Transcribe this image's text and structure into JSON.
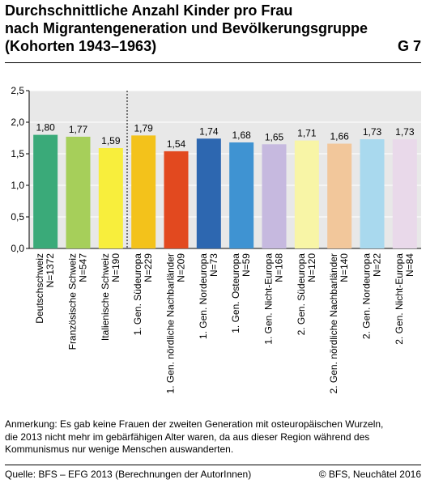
{
  "header": {
    "title_lines": [
      "Durchschnittliche Anzahl Kinder pro Frau",
      "nach Migrantengeneration und Bevölkerungsgruppe",
      "(Kohorten 1943–1963)"
    ],
    "figure_id": "G 7"
  },
  "chart_data": {
    "type": "bar",
    "title": "Durchschnittliche Anzahl Kinder pro Frau nach Migrantengeneration und Bevölkerungsgruppe (Kohorten 1943–1963)",
    "xlabel": "",
    "ylabel": "",
    "ylim": [
      0,
      2.5
    ],
    "yticks": [
      "0,0",
      "0,5",
      "1,0",
      "1,5",
      "2,0",
      "2,5"
    ],
    "grid": true,
    "legend": "none",
    "categories": [
      "Deutschschweiz",
      "Französische Schweiz",
      "Italienische Schweiz",
      "1. Gen. Südeuropa",
      "1. Gen. nördliche Nachbarländer",
      "1. Gen. Nordeuropa",
      "1. Gen. Osteuropa",
      "1. Gen. Nicht-Europa",
      "2. Gen. Südeuropa",
      "2. Gen. nördliche Nachbarländer",
      "2. Gen. Nordeuropa",
      "2. Gen. Nicht-Europa"
    ],
    "n_labels": [
      "N=1372",
      "N=547",
      "N=190",
      "N=229",
      "N=209",
      "N=73",
      "N=59",
      "N=168",
      "N=120",
      "N=140",
      "N=22",
      "N=84"
    ],
    "values": [
      1.8,
      1.77,
      1.59,
      1.79,
      1.54,
      1.74,
      1.68,
      1.65,
      1.71,
      1.66,
      1.73,
      1.73
    ],
    "value_labels": [
      "1,80",
      "1,77",
      "1,59",
      "1,79",
      "1,54",
      "1,74",
      "1,68",
      "1,65",
      "1,71",
      "1,66",
      "1,73",
      "1,73"
    ],
    "colors": [
      "#3aaa79",
      "#a6cf5a",
      "#f8ee3c",
      "#f3c21b",
      "#e2491f",
      "#2d67b0",
      "#3f93d2",
      "#c6b9df",
      "#f8f5a6",
      "#f2c79b",
      "#a9d9ee",
      "#e9d9ea"
    ],
    "separator_after_index": 2
  },
  "note": {
    "lines": [
      "Anmerkung: Es gab keine Frauen der zweiten Generation mit osteuropäischen Wurzeln,",
      "die 2013 nicht mehr im gebärfähigen Alter waren, da aus dieser Region während des",
      "Kommunismus nur wenige Menschen auswanderten."
    ]
  },
  "footer": {
    "source": "Quelle: BFS – EFG 2013 (Berechnungen der AutorInnen)",
    "copyright": "© BFS, Neuchâtel 2016"
  }
}
